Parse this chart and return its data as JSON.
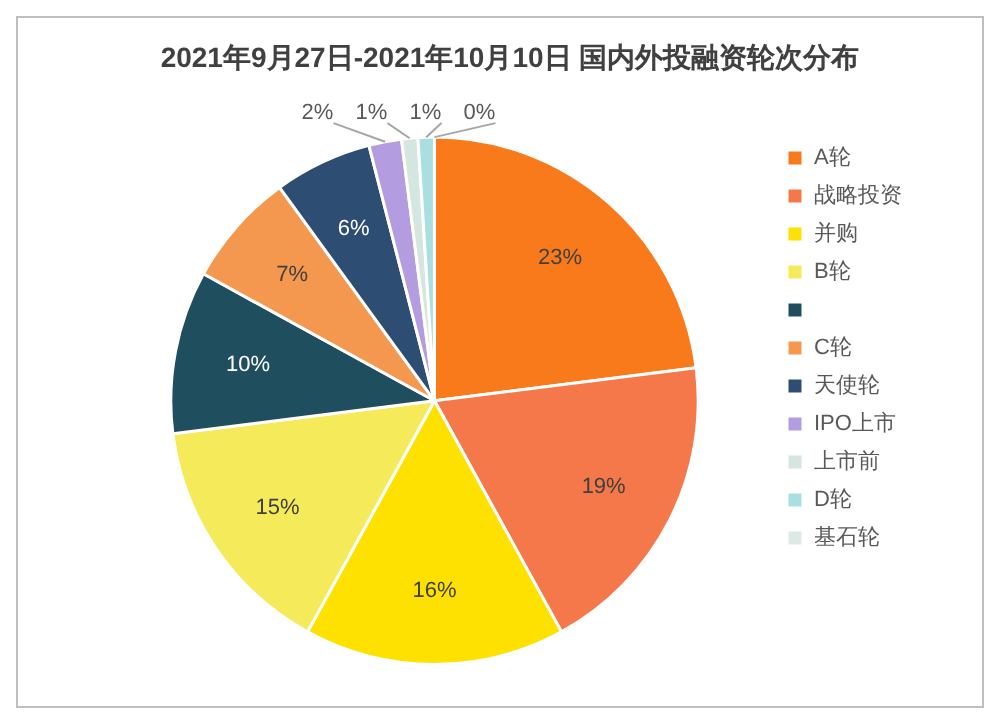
{
  "chart_data": {
    "type": "pie",
    "title": "2021年9月27日-2021年10月10日 国内外投融资轮次分布",
    "categories": [
      "A轮",
      "战略投资",
      "并购",
      "B轮",
      null,
      "C轮",
      "天使轮",
      "IPO上市",
      "上市前",
      "D轮",
      "基石轮"
    ],
    "values": [
      23,
      19,
      16,
      15,
      10,
      7,
      6,
      2,
      1,
      1,
      0
    ],
    "colors": [
      "#f97a1b",
      "#f4784a",
      "#ffe100",
      "#f5ea5a",
      "#1f4e5f",
      "#f4984f",
      "#2e4d73",
      "#b39ce0",
      "#d5e5e0",
      "#a9dfe0",
      "#dce9e4"
    ],
    "value_labels": [
      "23%",
      "19%",
      "16%",
      "15%",
      "10%",
      "7%",
      "6%",
      "2%",
      "1%",
      "1%",
      "0%"
    ],
    "legend": "right"
  }
}
